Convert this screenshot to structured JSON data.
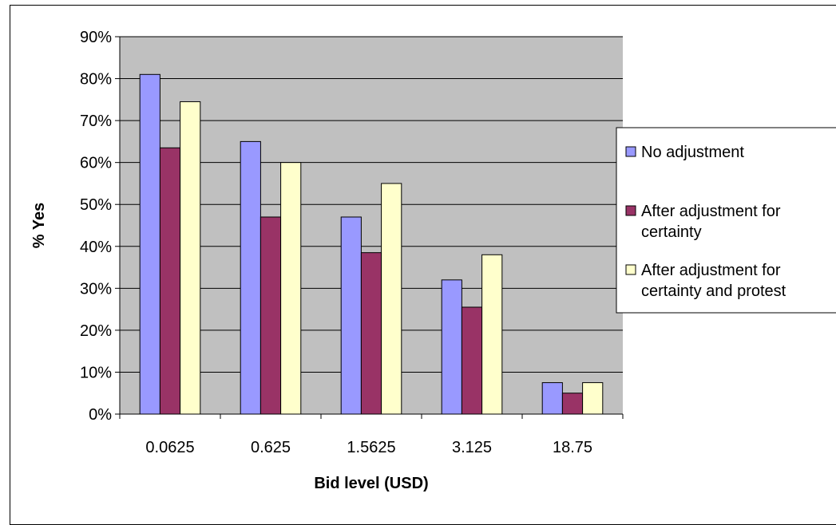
{
  "chart_data": {
    "type": "bar",
    "categories": [
      "0.0625",
      "0.625",
      "1.5625",
      "3.125",
      "18.75"
    ],
    "series": [
      {
        "name": "No adjustment",
        "values": [
          81,
          65,
          47,
          32,
          7.5
        ]
      },
      {
        "name": "After adjustment for certainty",
        "values": [
          63.5,
          47,
          38.5,
          25.5,
          5
        ]
      },
      {
        "name": "After adjustment for certainty and protest",
        "values": [
          74.5,
          60,
          55,
          38,
          7.5
        ]
      }
    ],
    "legend_labels": [
      [
        "No adjustment"
      ],
      [
        "After adjustment for",
        "certainty"
      ],
      [
        "After adjustment for",
        "certainty and protest"
      ]
    ],
    "colors": [
      "#9999ff",
      "#993366",
      "#ffffcc"
    ],
    "plot_background": "#c0c0c0",
    "xlabel": "Bid level (USD)",
    "ylabel": "% Yes",
    "ylim": [
      0,
      90
    ],
    "yticks": [
      0,
      10,
      20,
      30,
      40,
      50,
      60,
      70,
      80,
      90
    ],
    "ytick_labels": [
      "0%",
      "10%",
      "20%",
      "30%",
      "40%",
      "50%",
      "60%",
      "70%",
      "80%",
      "90%"
    ],
    "grid": true,
    "legend_position": "right"
  }
}
